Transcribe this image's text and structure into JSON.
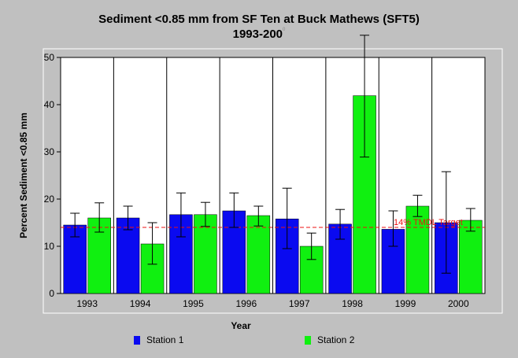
{
  "colors": {
    "background": "#c0c0c0",
    "plot_background": "#ffffff",
    "station1": "#0a0af0",
    "station2": "#10f010",
    "target_line": "#ee1111",
    "error_bars": "#000000"
  },
  "chart_data": {
    "type": "bar",
    "title": "Sediment <0.85 mm from SF Ten at Buck Mathews (SFT5)",
    "subtitle": "1993-200",
    "subtitle_superscript": "0",
    "xlabel": "Year",
    "ylabel": "Percent Sediment <0.85 mm",
    "ylim": [
      0,
      50
    ],
    "yticks": [
      0,
      10,
      20,
      30,
      40,
      50
    ],
    "categories": [
      "1993",
      "1994",
      "1995",
      "1996",
      "1997",
      "1998",
      "1999",
      "2000"
    ],
    "grid": "vertical lines between categories",
    "legend_position": "bottom",
    "series": [
      {
        "name": "Station 1",
        "color": "#0a0af0",
        "values": [
          14.5,
          16.0,
          16.7,
          17.5,
          15.8,
          14.7,
          13.6,
          15.0
        ],
        "error_low": [
          12.0,
          13.5,
          12.0,
          14.0,
          9.5,
          11.5,
          10.0,
          4.3
        ],
        "error_high": [
          17.0,
          18.5,
          21.3,
          21.3,
          22.3,
          17.8,
          17.5,
          25.8
        ]
      },
      {
        "name": "Station 2",
        "color": "#10f010",
        "values": [
          16.0,
          10.5,
          16.7,
          16.5,
          10.0,
          41.9,
          18.5,
          15.5
        ],
        "error_low": [
          13.0,
          6.2,
          14.2,
          14.3,
          7.2,
          28.9,
          16.3,
          13.2
        ],
        "error_high": [
          19.2,
          15.0,
          19.3,
          18.5,
          12.8,
          54.7,
          20.8,
          18.0
        ]
      }
    ],
    "reference_line": {
      "value": 14,
      "label": "14% TMDL Target"
    }
  }
}
